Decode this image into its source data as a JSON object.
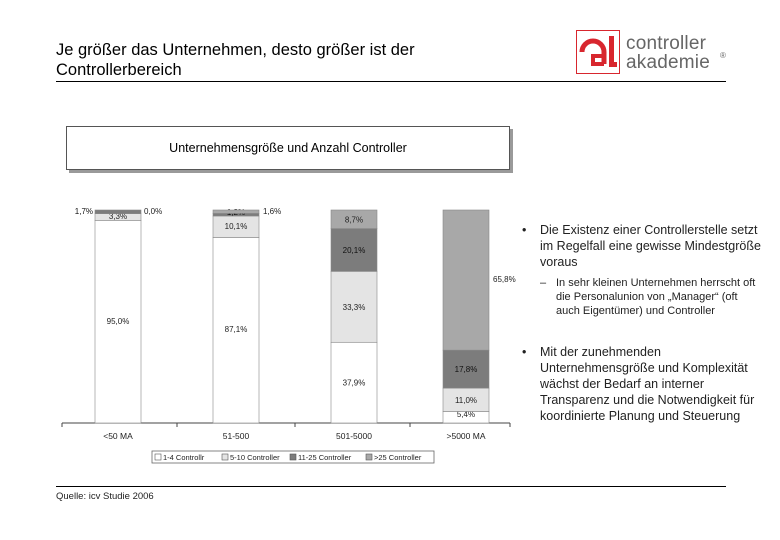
{
  "header": {
    "title": "Je größer das Unternehmen, desto größer ist der Controllerbereich"
  },
  "logo": {
    "mark": "cl",
    "line1": "controller",
    "line2": "akademie",
    "reg": "®"
  },
  "chart_data": {
    "type": "bar",
    "stacked": true,
    "title": "Unternehmensgröße und Anzahl Controller",
    "xlabel": "",
    "ylabel": "",
    "ylim": [
      0,
      100
    ],
    "grid": false,
    "legend_position": "bottom",
    "categories": [
      "<50 MA",
      "51-500",
      "501-5000",
      ">5000 MA"
    ],
    "series": [
      {
        "name": "1-4 Controllr",
        "color": "#ffffff",
        "values": [
          95.0,
          87.1,
          37.9,
          5.4
        ],
        "labels": [
          "95,0%",
          "87,1%",
          "37,9%",
          "5,4%"
        ]
      },
      {
        "name": "5-10 Controller",
        "color": "#e4e4e4",
        "values": [
          3.3,
          10.1,
          33.3,
          11.0
        ],
        "labels": [
          "3,3%",
          "10,1%",
          "33,3%",
          "11,0%"
        ]
      },
      {
        "name": "11-25 Controller",
        "color": "#7c7c7c",
        "values": [
          1.7,
          1.2,
          20.1,
          17.8
        ],
        "labels": [
          "1,7%",
          "1,2%",
          "20,1%",
          "17,8%"
        ]
      },
      {
        "name": ">25 Controller",
        "color": "#a8a8a8",
        "values": [
          0.0,
          1.6,
          8.7,
          65.8
        ],
        "labels": [
          "0,0%",
          "1,6%",
          "8,7%",
          "65,8%"
        ]
      }
    ]
  },
  "bullets": [
    {
      "text": "Die Existenz einer Controllerstelle setzt im Regelfall eine gewisse Mindestgröße voraus",
      "sub": "In sehr kleinen Unternehmen herrscht oft die Personalunion von „Manager“ (oft auch Eigentümer) und Controller"
    },
    {
      "text": "Mit der zunehmenden Unternehmensgröße und Komplexität wächst der Bedarf an interner Transparenz und die Notwendigkeit für koordinierte Planung und Steuerung"
    }
  ],
  "bullet_mark": "•",
  "sub_mark": "–",
  "footer": {
    "source": "Quelle: icv Studie 2006"
  }
}
